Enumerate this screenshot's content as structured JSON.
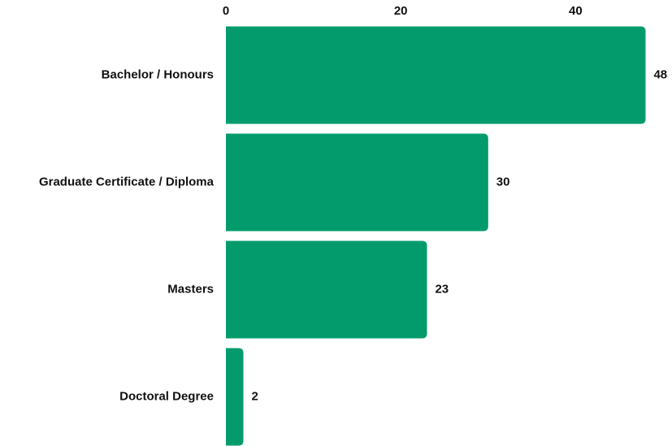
{
  "chart_data": {
    "type": "bar",
    "orientation": "horizontal",
    "categories": [
      "Bachelor / Honours",
      "Graduate Certificate / Diploma",
      "Masters",
      "Doctoral Degree"
    ],
    "values": [
      48,
      30,
      23,
      2
    ],
    "color": "#039b6b",
    "xlim": [
      0,
      50
    ],
    "xticks": [
      0,
      20,
      40
    ],
    "grid": false
  }
}
